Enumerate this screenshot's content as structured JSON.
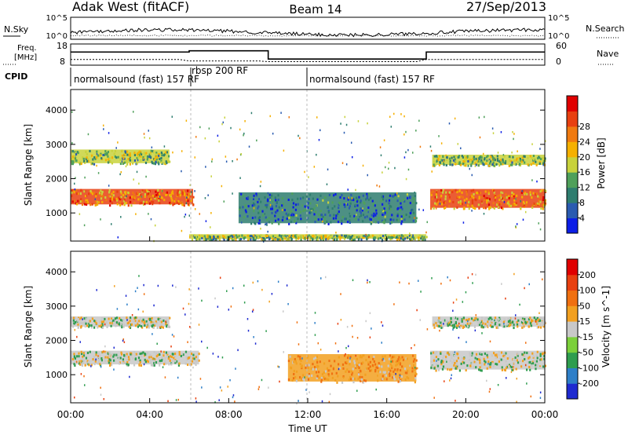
{
  "header": {
    "station": "Adak West (fitACF)",
    "beam": "Beam 14",
    "date": "27/Sep/2013"
  },
  "noise_panel": {
    "left_label": "N.Sky",
    "right_label": "N.Search",
    "left_ticks": [
      "10^5",
      "10^0"
    ],
    "right_ticks": [
      "10^5",
      "10^0"
    ]
  },
  "freq_panel": {
    "left_label_1": "Freq.",
    "left_label_2": "[MHz]",
    "left_ticks": [
      "18",
      "8"
    ],
    "right_label": "Nave",
    "right_ticks": [
      "60",
      "0"
    ],
    "freq_steps": [
      {
        "t": 0.0,
        "mhz": 14.2
      },
      {
        "t": 6.0,
        "mhz": 14.2
      },
      {
        "t": 6.0,
        "mhz": 14.8
      },
      {
        "t": 10.0,
        "mhz": 14.8
      },
      {
        "t": 10.0,
        "mhz": 10.9
      },
      {
        "t": 18.0,
        "mhz": 10.9
      },
      {
        "t": 18.0,
        "mhz": 14.2
      },
      {
        "t": 24.0,
        "mhz": 14.2
      }
    ]
  },
  "cpid": {
    "label": "CPID",
    "segments": [
      {
        "text": "normalsound (fast) 157 RF",
        "start": 0,
        "end": 6
      },
      {
        "text": "rbsp 200 RF",
        "start": 6,
        "end": 12
      },
      {
        "text": "normalsound (fast) 157 RF",
        "start": 12,
        "end": 24
      }
    ]
  },
  "chart_data": [
    {
      "type": "heatmap",
      "title": "",
      "quantity": "Power",
      "xlabel": "Time UT",
      "ylabel": "Slant Range [km]",
      "xlim": [
        0,
        24
      ],
      "ylim": [
        180,
        4600
      ],
      "x_ticks": [
        "00:00",
        "04:00",
        "08:00",
        "12:00",
        "16:00",
        "20:00",
        "00:00"
      ],
      "y_ticks": [
        1000,
        2000,
        3000,
        4000
      ],
      "colorbar": {
        "label": "Power [dB]",
        "ticks": [
          "4",
          "8",
          "12",
          "16",
          "20",
          "24",
          "28"
        ],
        "colors": [
          "#0c1ee6",
          "#2a5bb0",
          "#2e7d6f",
          "#4fa05a",
          "#c8d23c",
          "#f5b000",
          "#f07a10",
          "#e84010",
          "#e00000"
        ]
      },
      "echo_bands": [
        {
          "name": "F-region main",
          "t_range": [
            0,
            6.2
          ],
          "range_km": [
            1250,
            1700
          ],
          "power_db": 28
        },
        {
          "name": "upper band",
          "t_range": [
            0,
            5.0
          ],
          "range_km": [
            2450,
            2850
          ],
          "power_db": 20
        },
        {
          "name": "post-midnight echo",
          "t_range": [
            8.5,
            17.5
          ],
          "range_km": [
            700,
            1600
          ],
          "power_db": 14
        },
        {
          "name": "near-range E",
          "t_range": [
            6.0,
            18.0
          ],
          "range_km": [
            250,
            380
          ],
          "power_db": 20
        },
        {
          "name": "evening main",
          "t_range": [
            18.2,
            24
          ],
          "range_km": [
            1150,
            1700
          ],
          "power_db": 28
        },
        {
          "name": "evening upper",
          "t_range": [
            18.3,
            24
          ],
          "range_km": [
            2400,
            2700
          ],
          "power_db": 20
        }
      ]
    },
    {
      "type": "heatmap",
      "title": "",
      "quantity": "Velocity",
      "xlabel": "Time UT",
      "ylabel": "Slant Range [km]",
      "xlim": [
        0,
        24
      ],
      "ylim": [
        180,
        4600
      ],
      "x_ticks": [
        "00:00",
        "04:00",
        "08:00",
        "12:00",
        "16:00",
        "20:00",
        "00:00"
      ],
      "y_ticks": [
        1000,
        2000,
        3000,
        4000
      ],
      "colorbar": {
        "label": "Velocity [m s^-1]",
        "ticks": [
          "200",
          "100",
          "50",
          "15",
          "-15",
          "-50",
          "-100",
          "-200"
        ],
        "colors": [
          "#1e2ad0",
          "#2e7fc8",
          "#2f9d4f",
          "#7bd03a",
          "#c8c8c8",
          "#f2a020",
          "#f07010",
          "#e84010",
          "#e00000"
        ]
      },
      "echo_bands": [
        {
          "name": "ground scatter main",
          "t_range": [
            0,
            6.5
          ],
          "range_km": [
            1300,
            1700
          ],
          "velocity": 0
        },
        {
          "name": "ground scatter upper",
          "t_range": [
            0,
            5.0
          ],
          "range_km": [
            2400,
            2700
          ],
          "velocity": 0
        },
        {
          "name": "midnight flow",
          "t_range": [
            11,
            17.5
          ],
          "range_km": [
            800,
            1600
          ],
          "velocity": -40
        },
        {
          "name": "evening main",
          "t_range": [
            18.2,
            24
          ],
          "range_km": [
            1150,
            1700
          ],
          "velocity": 0
        },
        {
          "name": "evening upper",
          "t_range": [
            18.3,
            24
          ],
          "range_km": [
            2400,
            2700
          ],
          "velocity": 0
        }
      ]
    }
  ],
  "x_axis": {
    "label": "Time UT",
    "ticks": [
      "00:00",
      "04:00",
      "08:00",
      "12:00",
      "16:00",
      "20:00",
      "00:00"
    ]
  }
}
